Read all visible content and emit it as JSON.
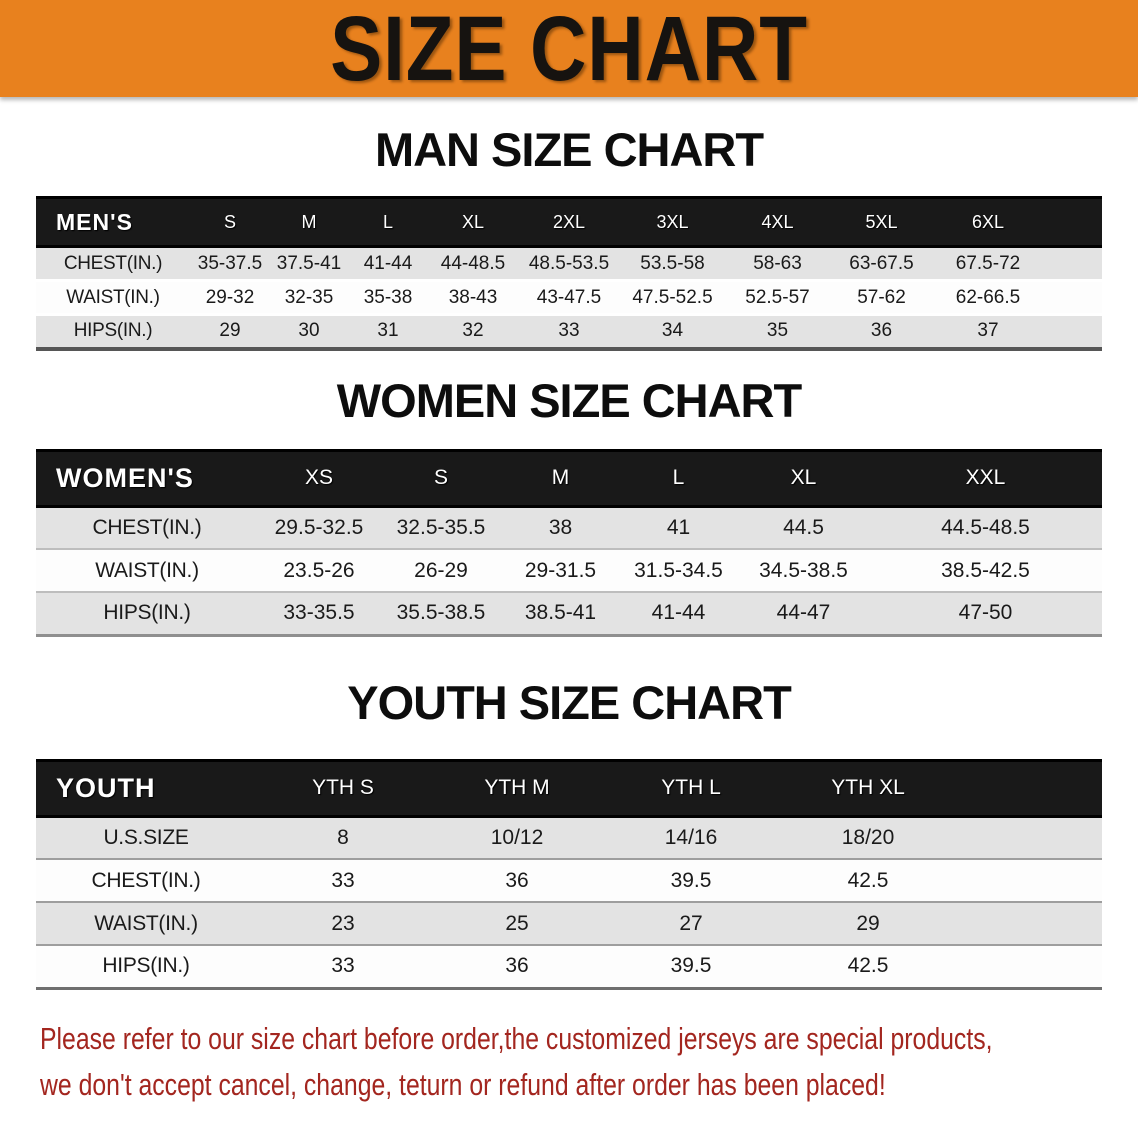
{
  "banner": {
    "title": "SIZE CHART",
    "bg_color": "#e8811e"
  },
  "sections": [
    {
      "title": "MAN SIZE CHART",
      "header_label": "MEN'S",
      "columns": [
        "S",
        "M",
        "L",
        "XL",
        "2XL",
        "3XL",
        "4XL",
        "5XL",
        "6XL"
      ],
      "rows": [
        {
          "label": "CHEST(IN.)",
          "values": [
            "35-37.5",
            "37.5-41",
            "41-44",
            "44-48.5",
            "48.5-53.5",
            "53.5-58",
            "58-63",
            "63-67.5",
            "67.5-72"
          ]
        },
        {
          "label": "WAIST(IN.)",
          "values": [
            "29-32",
            "32-35",
            "35-38",
            "38-43",
            "43-47.5",
            "47.5-52.5",
            "52.5-57",
            "57-62",
            "62-66.5"
          ]
        },
        {
          "label": "HIPS(IN.)",
          "values": [
            "29",
            "30",
            "31",
            "32",
            "33",
            "34",
            "35",
            "36",
            "37"
          ]
        }
      ]
    },
    {
      "title": "WOMEN SIZE CHART",
      "header_label": "WOMEN'S",
      "columns": [
        "XS",
        "S",
        "M",
        "L",
        "XL",
        "XXL"
      ],
      "rows": [
        {
          "label": "CHEST(IN.)",
          "values": [
            "29.5-32.5",
            "32.5-35.5",
            "38",
            "41",
            "44.5",
            "44.5-48.5"
          ]
        },
        {
          "label": "WAIST(IN.)",
          "values": [
            "23.5-26",
            "26-29",
            "29-31.5",
            "31.5-34.5",
            "34.5-38.5",
            "38.5-42.5"
          ]
        },
        {
          "label": "HIPS(IN.)",
          "values": [
            "33-35.5",
            "35.5-38.5",
            "38.5-41",
            "41-44",
            "44-47",
            "47-50"
          ]
        }
      ]
    },
    {
      "title": "YOUTH SIZE CHART",
      "header_label": "YOUTH",
      "columns": [
        "YTH S",
        "YTH M",
        "YTH L",
        "YTH XL"
      ],
      "rows": [
        {
          "label": "U.S.SIZE",
          "values": [
            "8",
            "10/12",
            "14/16",
            "18/20"
          ]
        },
        {
          "label": "CHEST(IN.)",
          "values": [
            "33",
            "36",
            "39.5",
            "42.5"
          ]
        },
        {
          "label": "WAIST(IN.)",
          "values": [
            "23",
            "25",
            "27",
            "29"
          ]
        },
        {
          "label": "HIPS(IN.)",
          "values": [
            "33",
            "36",
            "39.5",
            "42.5"
          ]
        }
      ]
    }
  ],
  "footer": {
    "line1": "Please refer to our size chart before order,the customized jerseys are special products,",
    "line2": "we don't accept cancel, change, teturn or refund after order has been placed!",
    "text_color": "#a3261f"
  }
}
